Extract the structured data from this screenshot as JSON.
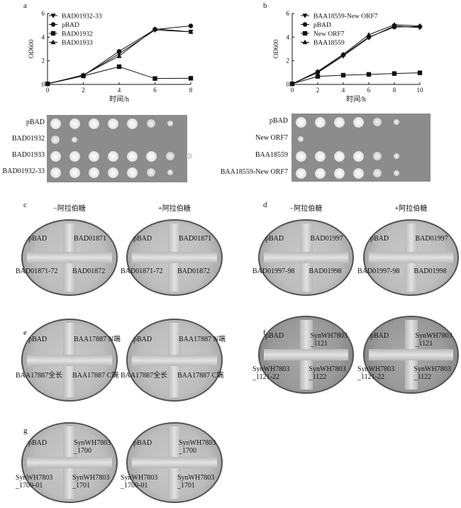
{
  "panels": {
    "a": {
      "letter": "a",
      "chart_data": {
        "type": "line",
        "x": [
          0,
          2,
          4,
          6,
          8
        ],
        "xlabel": "时间/h",
        "ylabel": "OD600",
        "xlim": [
          0,
          8
        ],
        "ylim": [
          0,
          6
        ],
        "xticks": [
          "0",
          "2",
          "4",
          "6",
          "8"
        ],
        "yticks": [
          "0",
          "2",
          "4",
          "6"
        ],
        "legend_position": "top-left",
        "series": [
          {
            "name": "BAD01932-33",
            "marker": "triangle-down",
            "values": [
              0.05,
              0.75,
              2.6,
              4.6,
              4.45
            ]
          },
          {
            "name": "pBAD",
            "marker": "circle",
            "values": [
              0.05,
              0.75,
              2.8,
              4.65,
              4.95
            ]
          },
          {
            "name": "BAD01932",
            "marker": "square",
            "values": [
              0.05,
              0.72,
              1.5,
              0.5,
              0.52
            ]
          },
          {
            "name": "BAD01933",
            "marker": "triangle-up",
            "values": [
              0.05,
              0.8,
              2.4,
              4.7,
              4.45
            ]
          }
        ]
      }
    },
    "b": {
      "letter": "b",
      "chart_data": {
        "type": "line",
        "x": [
          0,
          2,
          4,
          6,
          8,
          10
        ],
        "xlabel": "时间/h",
        "ylabel": "OD600",
        "xlim": [
          0,
          10
        ],
        "ylim": [
          0,
          6
        ],
        "xticks": [
          "0",
          "2",
          "4",
          "6",
          "8",
          "10"
        ],
        "yticks": [
          "0",
          "2",
          "4",
          "6"
        ],
        "legend_position": "top-left",
        "series": [
          {
            "name": "BAA18559-New ORF7",
            "marker": "triangle-down",
            "values": [
              0.05,
              1.0,
              2.4,
              3.95,
              4.95,
              4.8
            ]
          },
          {
            "name": "pBAD",
            "marker": "circle",
            "values": [
              0.05,
              1.05,
              2.5,
              4.0,
              4.85,
              4.9
            ]
          },
          {
            "name": "New ORF7",
            "marker": "square",
            "values": [
              0.05,
              0.68,
              0.78,
              0.85,
              0.92,
              0.98
            ]
          },
          {
            "name": "BAA18559",
            "marker": "triangle-up",
            "values": [
              0.05,
              1.1,
              2.55,
              4.2,
              5.05,
              4.95
            ]
          }
        ]
      }
    },
    "spots_left": {
      "rows": [
        {
          "label": "pBAD",
          "count": 7
        },
        {
          "label": "BAD01932",
          "count": 2
        },
        {
          "label": "BAD01933",
          "count": 8
        },
        {
          "label": "BAD01932-33",
          "count": 7
        }
      ]
    },
    "spots_right": {
      "rows": [
        {
          "label": "pBAD",
          "count": 6
        },
        {
          "label": "New ORF7",
          "count": 1
        },
        {
          "label": "BAA18559",
          "count": 6
        },
        {
          "label": "BAA18559-New ORF7",
          "count": 6
        }
      ]
    },
    "plates": [
      {
        "letter": "c",
        "titles": [
          "−阿拉伯糖",
          "+阿拉伯糖"
        ],
        "dark": false,
        "labels": {
          "tl": "pBAD",
          "tr": "BAD01871",
          "bl": "BAD01871-72",
          "br": "BAD01872"
        }
      },
      {
        "letter": "d",
        "titles": [
          "−阿拉伯糖",
          "+阿拉伯糖"
        ],
        "dark": false,
        "labels": {
          "tl": "pBAD",
          "tr": "BAD01997",
          "bl": "BAD01997-98",
          "br": "BAD01998"
        }
      },
      {
        "letter": "e",
        "titles": [
          "",
          ""
        ],
        "dark": false,
        "labels": {
          "tl": "pBAD",
          "tr": "BAA17887 N端",
          "bl": "BAA17887全长",
          "br": "BAA17887 C端"
        }
      },
      {
        "letter": "f",
        "titles": [
          "",
          ""
        ],
        "dark": true,
        "labels": {
          "tl": "pBAD",
          "tr": "SynWH7803\n_1121",
          "bl": "SynWH7803\n_1121-22",
          "br": "SynWH7803\n_1122"
        }
      },
      {
        "letter": "g",
        "titles": [
          "",
          ""
        ],
        "dark": false,
        "labels": {
          "tl": "pBAD",
          "tr": "SynWH7803\n_1700",
          "bl": "SynWH7803\n_1700-01",
          "br": "SynWH7803\n_1701"
        }
      }
    ]
  }
}
